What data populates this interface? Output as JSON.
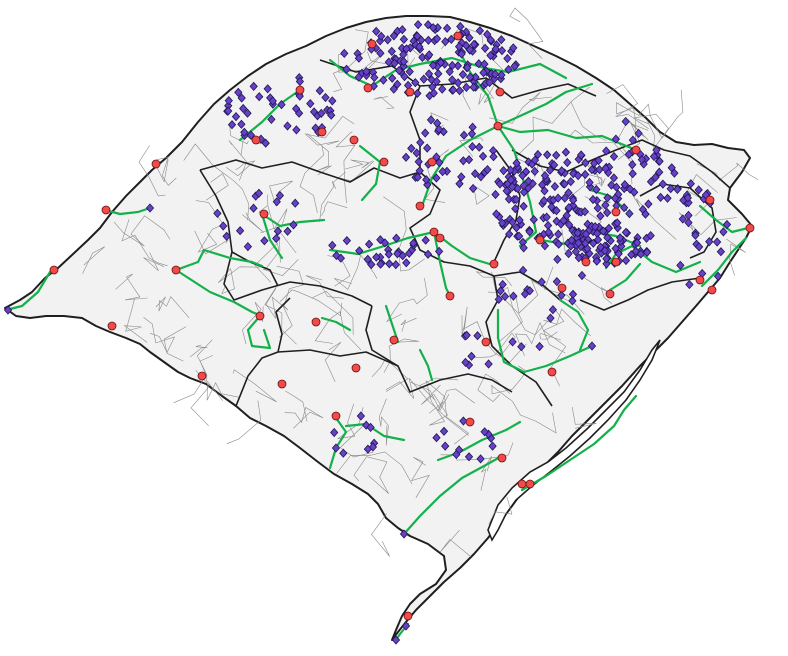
{
  "colors": {
    "background": "#ffffff",
    "land": "#f2f2f2",
    "state_border": "#1f1f1f",
    "municipal_border": "#8a8a8a",
    "route": "#14b04a",
    "city_marker": "#f04a4a",
    "site_marker": "#6a3fc9"
  },
  "layers": {
    "state_outline": "thick-dark-boundary",
    "regions": "dark-internal-boundaries",
    "municipalities": "thin-grey-boundaries",
    "routes": "green-polylines",
    "cities": "red-circle-markers",
    "sites": "purple-diamond-markers"
  }
}
